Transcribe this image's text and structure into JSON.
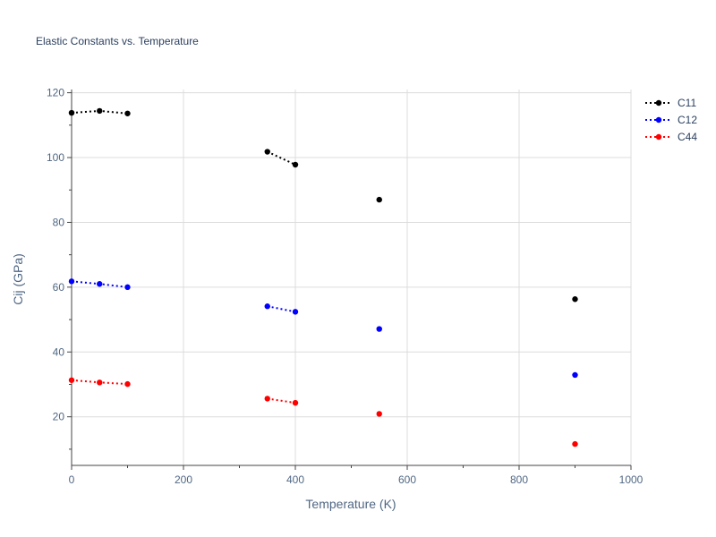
{
  "chart_data": {
    "type": "scatter",
    "title": "Elastic Constants vs. Temperature",
    "xlabel": "Temperature (K)",
    "ylabel": "Cij (GPa)",
    "xlim": [
      0,
      1000
    ],
    "ylim": [
      5,
      121
    ],
    "xticks": [
      0,
      200,
      400,
      600,
      800,
      1000
    ],
    "yticks": [
      20,
      40,
      60,
      80,
      100,
      120
    ],
    "grid": true,
    "legend_position": "top-right",
    "line_style": "dotted",
    "series": [
      {
        "name": "C11",
        "color": "#000000",
        "segments": [
          [
            [
              0,
              113.8
            ],
            [
              50,
              114.4
            ],
            [
              100,
              113.6
            ]
          ],
          [
            [
              350,
              101.8
            ],
            [
              400,
              97.8
            ]
          ],
          [
            [
              550,
              87.0
            ]
          ],
          [
            [
              900,
              56.3
            ]
          ]
        ]
      },
      {
        "name": "C12",
        "color": "#0000ff",
        "segments": [
          [
            [
              0,
              61.8
            ],
            [
              50,
              61.0
            ],
            [
              100,
              60.0
            ]
          ],
          [
            [
              350,
              54.1
            ],
            [
              400,
              52.4
            ]
          ],
          [
            [
              550,
              47.1
            ]
          ],
          [
            [
              900,
              32.9
            ]
          ]
        ]
      },
      {
        "name": "C44",
        "color": "#ff0000",
        "segments": [
          [
            [
              0,
              31.3
            ],
            [
              50,
              30.6
            ],
            [
              100,
              30.1
            ]
          ],
          [
            [
              350,
              25.6
            ],
            [
              400,
              24.3
            ]
          ],
          [
            [
              550,
              20.9
            ]
          ],
          [
            [
              900,
              11.6
            ]
          ]
        ]
      }
    ]
  }
}
